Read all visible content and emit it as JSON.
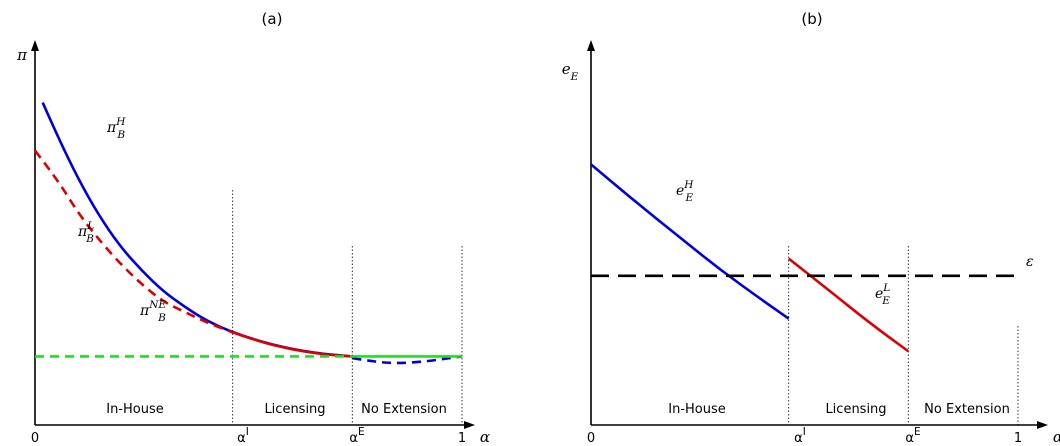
{
  "chart_data": [
    {
      "id": "a",
      "type": "line",
      "title": "(a)",
      "xlabel": "α",
      "ylabel": "π",
      "xlim": [
        0,
        1
      ],
      "ylim": [
        0,
        1
      ],
      "x_ticks": [
        {
          "x": 0,
          "label": "0"
        },
        {
          "x": 0.463,
          "label": "α",
          "sup": "I"
        },
        {
          "x": 0.743,
          "label": "α",
          "sup": "E"
        },
        {
          "x": 1,
          "label": "1"
        }
      ],
      "regions": [
        {
          "label": "In-House",
          "from": 0,
          "to": 0.463
        },
        {
          "label": "Licensing",
          "from": 0.463,
          "to": 0.743
        },
        {
          "label": "No Extension",
          "from": 0.743,
          "to": 1
        }
      ],
      "series": [
        {
          "name": "π",
          "sub": "B",
          "sup": "H",
          "color": "#0000dd",
          "dash": "solid",
          "x": [
            0.018,
            0.05,
            0.1,
            0.15,
            0.2,
            0.25,
            0.3,
            0.35,
            0.4,
            0.463,
            0.55,
            0.65,
            0.743
          ],
          "y": [
            0.94,
            0.85,
            0.72,
            0.61,
            0.52,
            0.45,
            0.39,
            0.345,
            0.305,
            0.27,
            0.235,
            0.21,
            0.2
          ]
        },
        {
          "name": "π",
          "sub": "B",
          "sup": "L",
          "color": "#dd0000",
          "dash": "dashed",
          "x": [
            0.0,
            0.05,
            0.1,
            0.15,
            0.2,
            0.25,
            0.3,
            0.35,
            0.4,
            0.463
          ],
          "y": [
            0.8,
            0.72,
            0.62,
            0.54,
            0.47,
            0.41,
            0.36,
            0.33,
            0.3,
            0.27
          ]
        },
        {
          "name": "",
          "color": "#dd0000",
          "dash": "solid",
          "x": [
            0.463,
            0.52,
            0.6,
            0.68,
            0.743
          ],
          "y": [
            0.27,
            0.245,
            0.22,
            0.205,
            0.2
          ]
        },
        {
          "name": "",
          "color": "#0000dd",
          "dash": "dashed",
          "x": [
            0.743,
            0.8,
            0.86,
            0.92,
            0.97,
            1.0
          ],
          "y": [
            0.195,
            0.183,
            0.18,
            0.186,
            0.195,
            0.2
          ]
        },
        {
          "name": "π",
          "sub": "B",
          "sup": "NE",
          "color": "#22dd22",
          "dash": "dashed",
          "x": [
            0.0,
            0.743
          ],
          "y": [
            0.2,
            0.2
          ]
        },
        {
          "name": "",
          "color": "#22dd22",
          "dash": "solid",
          "x": [
            0.743,
            1.0
          ],
          "y": [
            0.2,
            0.2
          ]
        }
      ]
    },
    {
      "id": "b",
      "type": "line",
      "title": "(b)",
      "xlabel": "α",
      "ylabel": "e",
      "ylabel_sub": "E",
      "xlim": [
        0,
        1
      ],
      "ylim": [
        0,
        1
      ],
      "x_ticks": [
        {
          "x": 0,
          "label": "0"
        },
        {
          "x": 0.463,
          "label": "α",
          "sup": "I"
        },
        {
          "x": 0.743,
          "label": "α",
          "sup": "E"
        },
        {
          "x": 1,
          "label": "1"
        }
      ],
      "regions": [
        {
          "label": "In-House",
          "from": 0,
          "to": 0.463
        },
        {
          "label": "Licensing",
          "from": 0.463,
          "to": 0.743
        },
        {
          "label": "No Extension",
          "from": 0.743,
          "to": 1
        }
      ],
      "series": [
        {
          "name": "e",
          "sub": "E",
          "sup": "H",
          "color": "#0000dd",
          "dash": "solid",
          "x": [
            0.0,
            0.1,
            0.2,
            0.3,
            0.4,
            0.463
          ],
          "y": [
            0.76,
            0.655,
            0.555,
            0.455,
            0.365,
            0.31
          ]
        },
        {
          "name": "e",
          "sub": "E",
          "sup": "L",
          "color": "#dd0000",
          "dash": "solid",
          "x": [
            0.463,
            0.55,
            0.65,
            0.743
          ],
          "y": [
            0.485,
            0.4,
            0.3,
            0.215
          ]
        },
        {
          "name": "ε",
          "color": "#000000",
          "dash": "longdash",
          "x": [
            0.0,
            1.0
          ],
          "y": [
            0.435,
            0.435
          ]
        }
      ]
    }
  ]
}
